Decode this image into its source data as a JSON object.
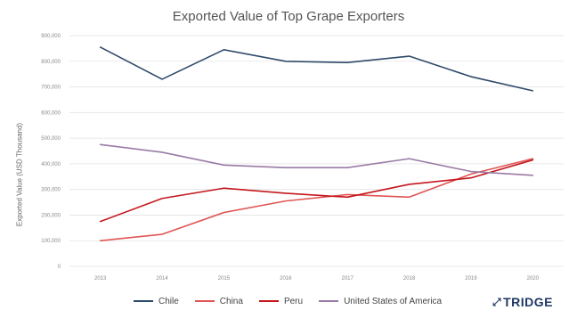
{
  "chart_data": {
    "type": "line",
    "title": "Exported Value of Top Grape Exporters",
    "ylabel": "Exported Value (USD Thousand)",
    "x": [
      "2013",
      "2014",
      "2015",
      "2016",
      "2017",
      "2018",
      "2019",
      "2020"
    ],
    "yticks": [
      "0",
      "100,000",
      "200,000",
      "300,000",
      "400,000",
      "500,000",
      "600,000",
      "700,000",
      "800,000",
      "900,000"
    ],
    "ylim": [
      0,
      900000
    ],
    "legend_position": "bottom",
    "series": [
      {
        "name": "Chile",
        "color": "#2e4a6b",
        "values": [
          855000,
          730000,
          845000,
          800000,
          795000,
          820000,
          740000,
          685000
        ]
      },
      {
        "name": "China",
        "color": "#e05555",
        "values": [
          100000,
          125000,
          210000,
          255000,
          280000,
          270000,
          360000,
          420000
        ]
      },
      {
        "name": "Peru",
        "color": "#c4171d",
        "values": [
          175000,
          265000,
          305000,
          285000,
          270000,
          320000,
          345000,
          415000
        ]
      },
      {
        "name": "United States of America",
        "color": "#9a7aa6",
        "values": [
          475000,
          445000,
          395000,
          385000,
          385000,
          420000,
          370000,
          355000
        ]
      }
    ]
  },
  "brand": {
    "name": "TRIDGE",
    "icon": "tridge-logo-icon"
  }
}
